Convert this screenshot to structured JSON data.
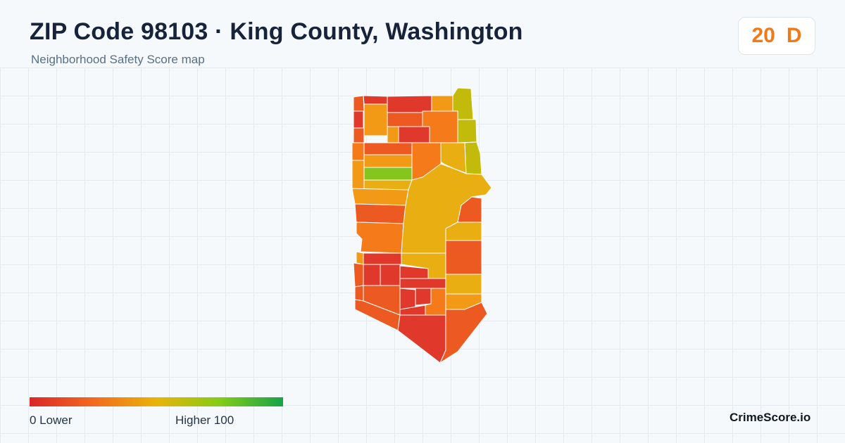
{
  "header": {
    "title": "ZIP Code 98103 · King County, Washington",
    "subtitle": "Neighborhood Safety Score map"
  },
  "score": {
    "value": "20",
    "grade": "D",
    "color": "#f07a1a"
  },
  "legend": {
    "low_label": "0  Lower",
    "high_label": "Higher  100",
    "colors": [
      "#dc2626",
      "#f26a1f",
      "#eab308",
      "#84cc16",
      "#16a34a"
    ]
  },
  "brand": "CrimeScore.io",
  "map": {
    "palette": {
      "red": "#e0382a",
      "red_orange": "#ec5a22",
      "orange": "#f47a1a",
      "amber": "#f29a16",
      "gold": "#e9ae12",
      "yellow_green": "#c2bb0c",
      "green": "#84c61b"
    }
  }
}
